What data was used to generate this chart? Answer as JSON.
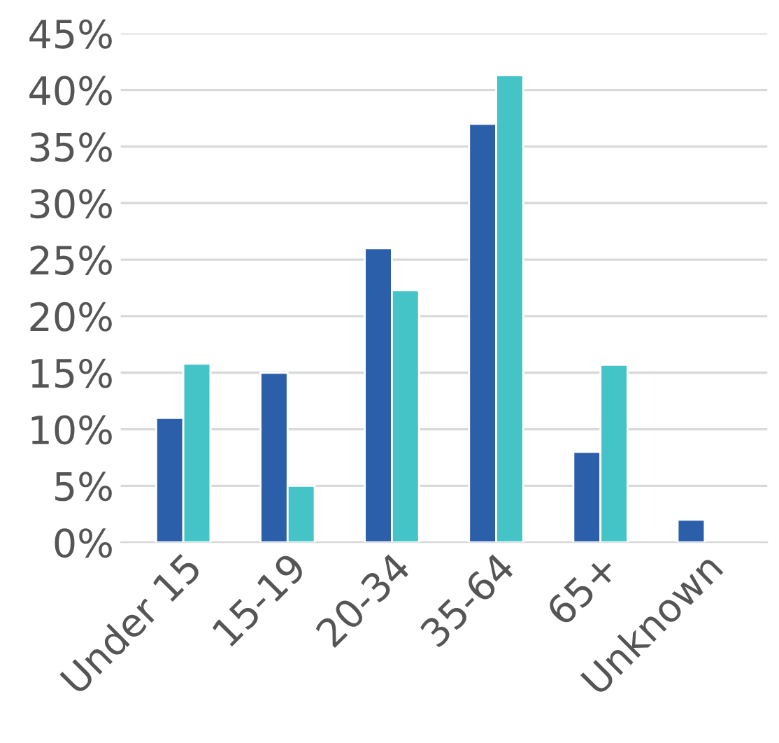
{
  "chart_data": {
    "type": "bar",
    "categories": [
      "Under 15",
      "15-19",
      "20-34",
      "35-64",
      "65+",
      "Unknown"
    ],
    "series": [
      {
        "color": "#2c5faa",
        "values": [
          11,
          15,
          26,
          37,
          8,
          2
        ]
      },
      {
        "color": "#45c4c8",
        "values": [
          15.8,
          5,
          22.3,
          41.3,
          15.7,
          null
        ]
      }
    ],
    "ylim": [
      0,
      45
    ],
    "yticks": [
      {
        "value": 0,
        "label": "0%"
      },
      {
        "value": 5,
        "label": "5%"
      },
      {
        "value": 10,
        "label": "10%"
      },
      {
        "value": 15,
        "label": "15%"
      },
      {
        "value": 20,
        "label": "20%"
      },
      {
        "value": 25,
        "label": "25%"
      },
      {
        "value": 30,
        "label": "30%"
      },
      {
        "value": 35,
        "label": "35%"
      },
      {
        "value": 40,
        "label": "40%"
      },
      {
        "value": 45,
        "label": "45%"
      }
    ],
    "grid": "y"
  }
}
